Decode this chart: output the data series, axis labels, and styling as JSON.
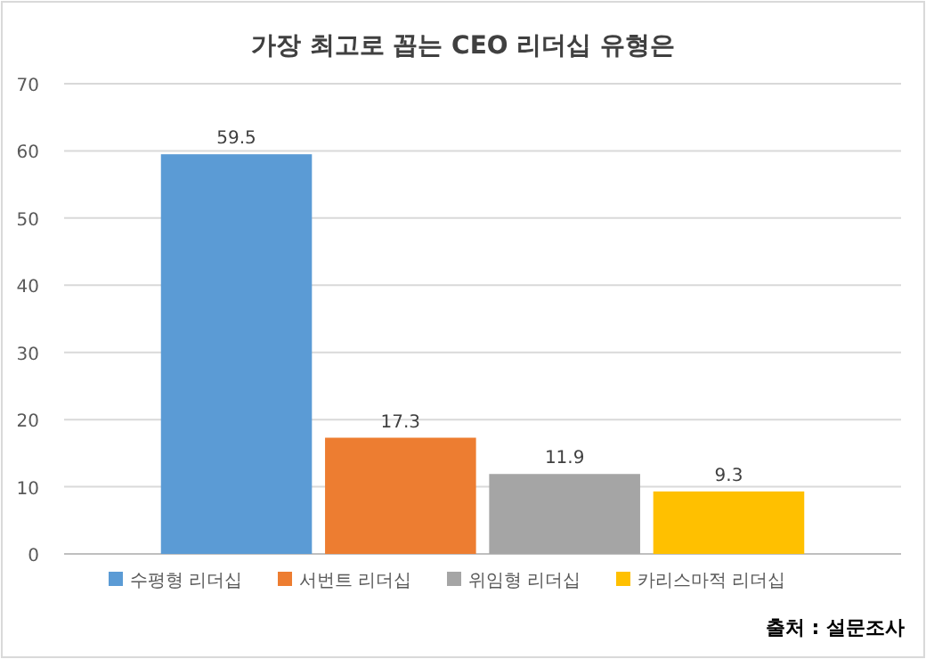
{
  "chart_data": {
    "type": "bar",
    "title": "가장 최고로 꼽는 CEO 리더십 유형은",
    "categories": [
      null
    ],
    "series": [
      {
        "name": "수평형 리더십",
        "color": "#5b9bd5",
        "values": [
          59.5
        ]
      },
      {
        "name": "서번트 리더십",
        "color": "#ed7d31",
        "values": [
          17.3
        ]
      },
      {
        "name": "위임형 리더십",
        "color": "#a5a5a5",
        "values": [
          11.9
        ]
      },
      {
        "name": "카리스마적 리더십",
        "color": "#ffc000",
        "values": [
          9.3
        ]
      }
    ],
    "ylim": [
      0,
      70
    ],
    "yticks": [
      0,
      10,
      20,
      30,
      40,
      50,
      60,
      70
    ],
    "grid": "y",
    "legend": "bottom",
    "data_labels": true,
    "annotations": [
      "출처 : 설문조사"
    ]
  }
}
